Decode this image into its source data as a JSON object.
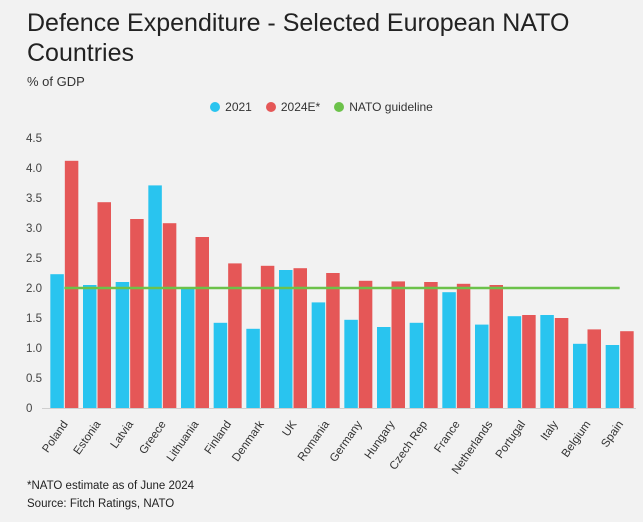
{
  "chart_data": {
    "type": "bar",
    "title": "Defence Expenditure - Selected European NATO Countries",
    "ylabel": "% of GDP",
    "xlabel": "",
    "ylim": [
      0,
      4.5
    ],
    "yticks": [
      "0",
      "0.5",
      "1.0",
      "1.5",
      "2.0",
      "2.5",
      "3.0",
      "3.5",
      "4.0",
      "4.5"
    ],
    "categories": [
      "Poland",
      "Estonia",
      "Latvia",
      "Greece",
      "Lithuania",
      "Finland",
      "Denmark",
      "UK",
      "Romania",
      "Germany",
      "Hungary",
      "Czech Rep",
      "France",
      "Netherlands",
      "Portugal",
      "Italy",
      "Belgium",
      "Spain"
    ],
    "series": [
      {
        "name": "2021",
        "color": "#29c4ef",
        "values": [
          2.23,
          2.05,
          2.1,
          3.71,
          2.0,
          1.42,
          1.32,
          2.3,
          1.76,
          1.47,
          1.35,
          1.42,
          1.93,
          1.39,
          1.53,
          1.55,
          1.07,
          1.05
        ]
      },
      {
        "name": "2024E*",
        "color": "#e55757",
        "values": [
          4.12,
          3.43,
          3.15,
          3.08,
          2.85,
          2.41,
          2.37,
          2.33,
          2.25,
          2.12,
          2.11,
          2.1,
          2.07,
          2.05,
          1.55,
          1.5,
          1.31,
          1.28
        ]
      }
    ],
    "guideline": {
      "name": "NATO guideline",
      "value": 2.0,
      "color": "#6cc24a"
    },
    "legend_position": "top-center",
    "grid": false
  },
  "footnote": "*NATO estimate as of June 2024",
  "source": "Source: Fitch Ratings, NATO"
}
